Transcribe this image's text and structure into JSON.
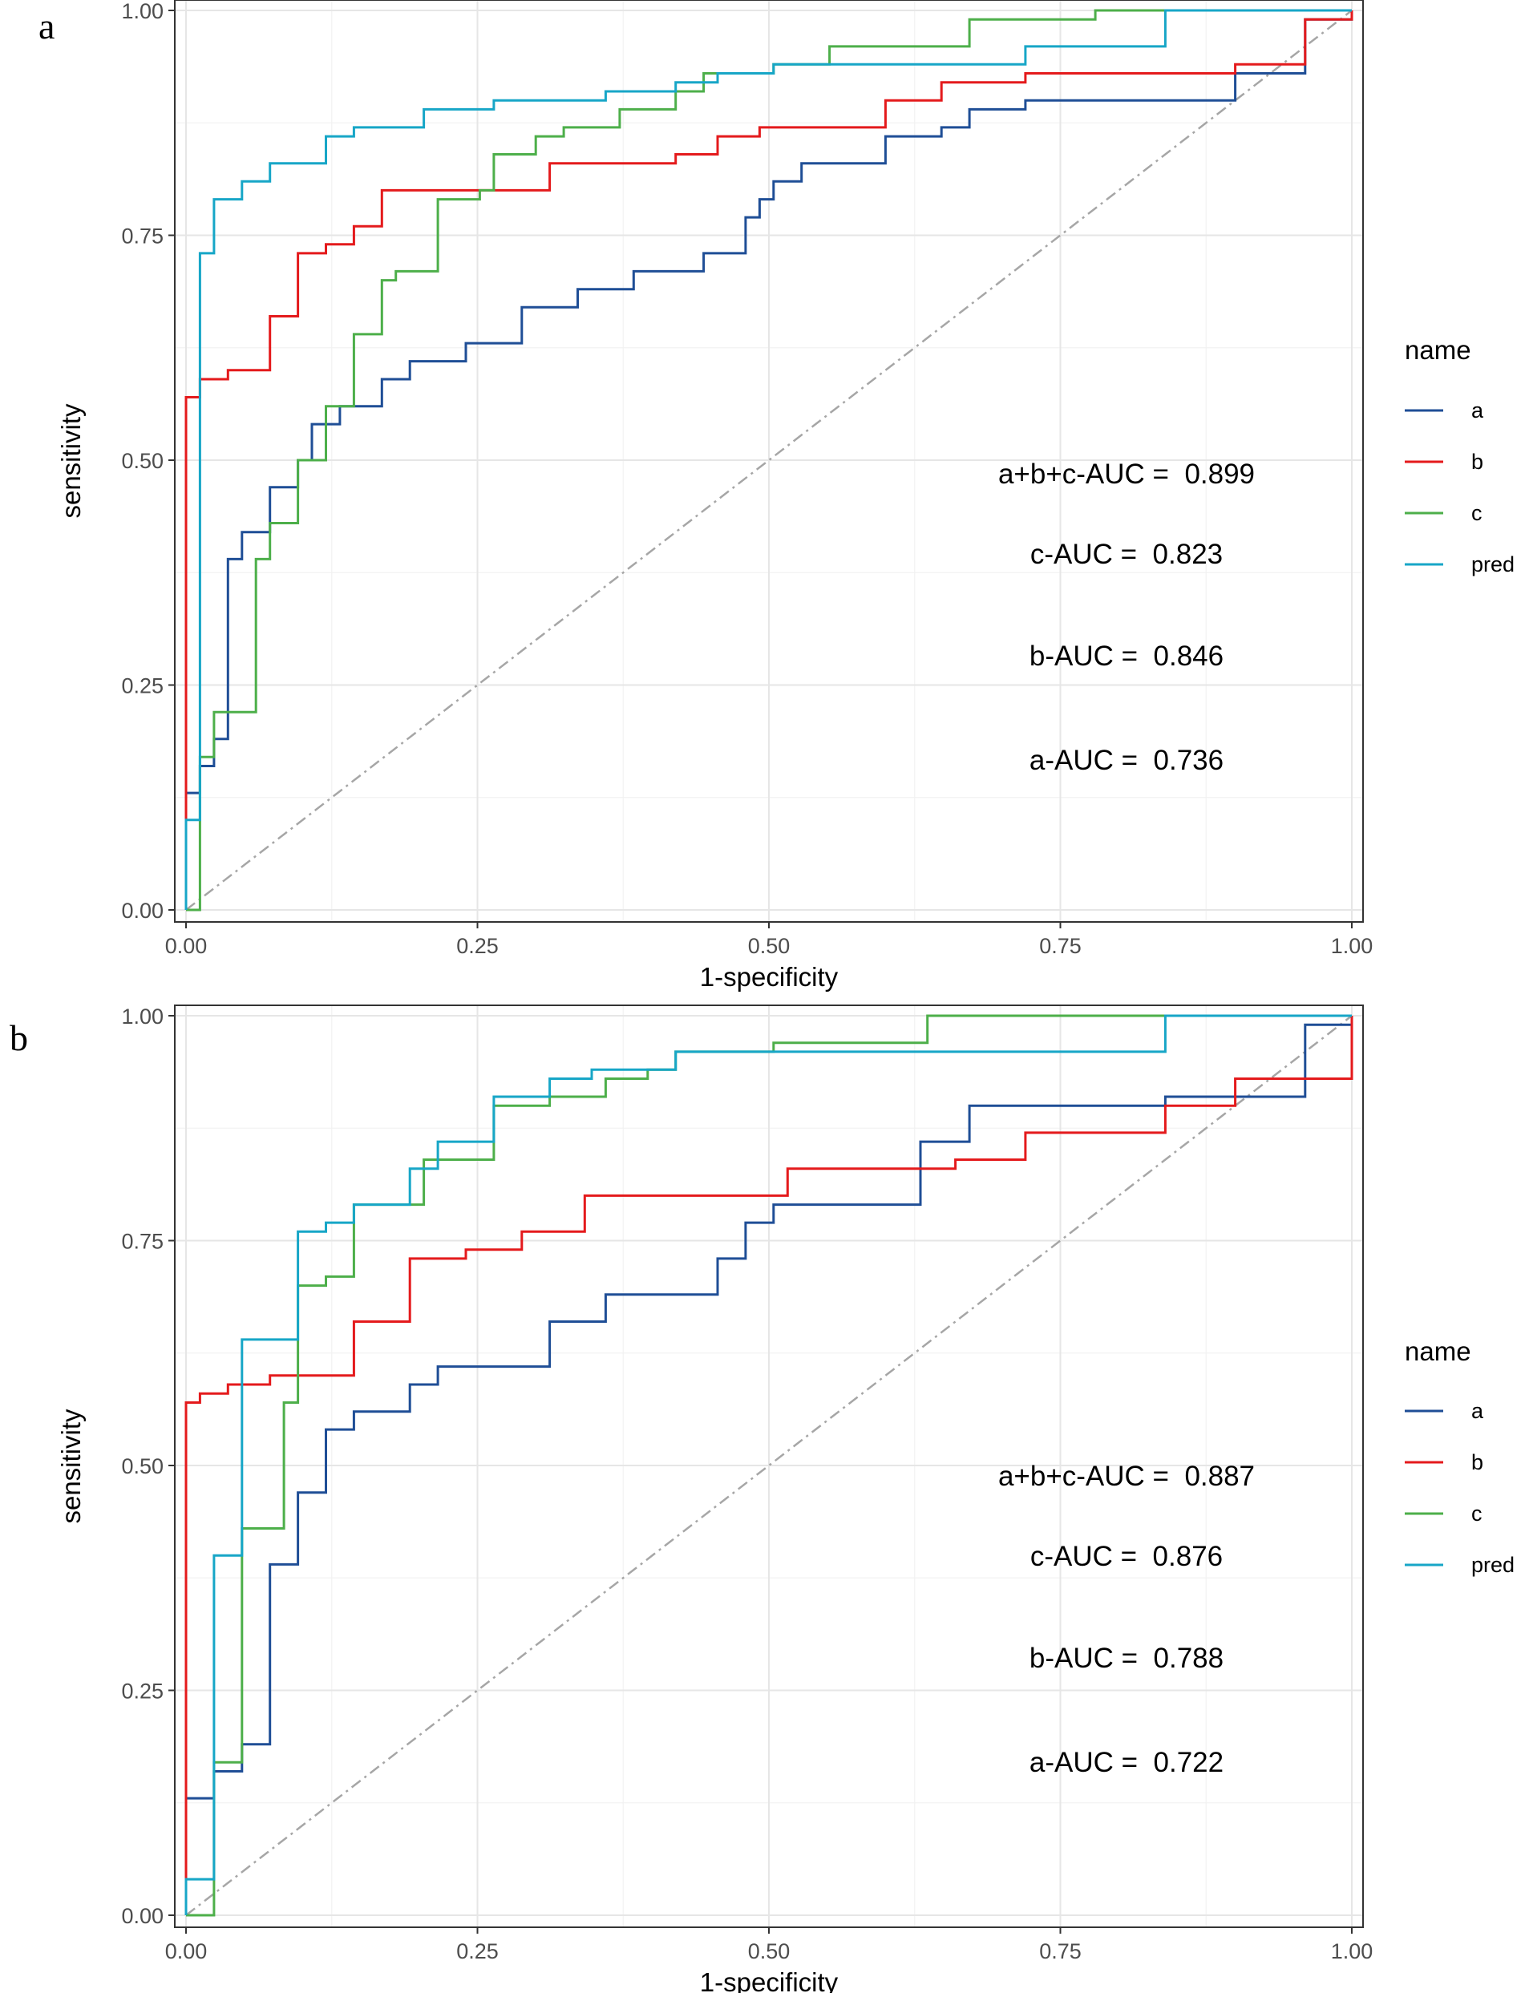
{
  "figure": {
    "panels": [
      {
        "letter": "a",
        "legend_title": "name"
      },
      {
        "letter": "b",
        "legend_title": "name"
      }
    ]
  },
  "chart_data": [
    {
      "type": "line",
      "panel": "a",
      "xlabel": "1-specificity",
      "ylabel": "sensitivity",
      "xlim": [
        0,
        1
      ],
      "ylim": [
        0,
        1
      ],
      "xticks": [
        "0.00",
        "0.25",
        "0.50",
        "0.75",
        "1.00"
      ],
      "yticks": [
        "0.00",
        "0.25",
        "0.50",
        "0.75",
        "1.00"
      ],
      "grid": true,
      "legend": {
        "title": "name",
        "position": "right",
        "entries": [
          "a",
          "b",
          "c",
          "pred"
        ]
      },
      "reference_line": {
        "x": [
          0,
          1
        ],
        "y": [
          0,
          1
        ],
        "style": "dash-dot",
        "color": "#a6a6a6"
      },
      "annotations": [
        "a+b+c-AUC =  0.899",
        "c-AUC =  0.823",
        "b-AUC =  0.846",
        "a-AUC =  0.736"
      ],
      "series": [
        {
          "name": "a",
          "color": "#1f4e96",
          "x": [
            0,
            0,
            0.012,
            0.012,
            0.024,
            0.024,
            0.036,
            0.036,
            0.048,
            0.048,
            0.072,
            0.072,
            0.096,
            0.096,
            0.108,
            0.108,
            0.132,
            0.132,
            0.168,
            0.168,
            0.192,
            0.192,
            0.24,
            0.24,
            0.288,
            0.288,
            0.336,
            0.336,
            0.384,
            0.384,
            0.444,
            0.444,
            0.48,
            0.48,
            0.492,
            0.492,
            0.504,
            0.504,
            0.528,
            0.528,
            0.6,
            0.6,
            0.648,
            0.648,
            0.672,
            0.672,
            0.72,
            0.72,
            0.9,
            0.9,
            0.96,
            0.96,
            1,
            1
          ],
          "y": [
            0,
            0.13,
            0.13,
            0.16,
            0.16,
            0.19,
            0.19,
            0.39,
            0.39,
            0.42,
            0.42,
            0.47,
            0.47,
            0.5,
            0.5,
            0.54,
            0.54,
            0.56,
            0.56,
            0.59,
            0.59,
            0.61,
            0.61,
            0.63,
            0.63,
            0.67,
            0.67,
            0.69,
            0.69,
            0.71,
            0.71,
            0.73,
            0.73,
            0.77,
            0.77,
            0.79,
            0.79,
            0.81,
            0.81,
            0.83,
            0.83,
            0.86,
            0.86,
            0.87,
            0.87,
            0.89,
            0.89,
            0.9,
            0.9,
            0.93,
            0.93,
            0.99,
            0.99,
            1
          ]
        },
        {
          "name": "b",
          "color": "#e41a1c",
          "x": [
            0,
            0,
            0.012,
            0.012,
            0.036,
            0.036,
            0.072,
            0.072,
            0.096,
            0.096,
            0.12,
            0.12,
            0.144,
            0.144,
            0.168,
            0.168,
            0.204,
            0.204,
            0.312,
            0.312,
            0.42,
            0.42,
            0.456,
            0.456,
            0.492,
            0.492,
            0.6,
            0.6,
            0.648,
            0.648,
            0.72,
            0.72,
            0.9,
            0.9,
            0.96,
            0.96,
            1,
            1
          ],
          "y": [
            0,
            0.57,
            0.57,
            0.59,
            0.59,
            0.6,
            0.6,
            0.66,
            0.66,
            0.73,
            0.73,
            0.74,
            0.74,
            0.76,
            0.76,
            0.8,
            0.8,
            0.8,
            0.8,
            0.83,
            0.83,
            0.84,
            0.84,
            0.86,
            0.86,
            0.87,
            0.87,
            0.9,
            0.9,
            0.92,
            0.92,
            0.93,
            0.93,
            0.94,
            0.94,
            0.99,
            0.99,
            1
          ]
        },
        {
          "name": "c",
          "color": "#4daf4a",
          "x": [
            0,
            0.012,
            0.012,
            0.024,
            0.024,
            0.06,
            0.06,
            0.072,
            0.072,
            0.096,
            0.096,
            0.12,
            0.12,
            0.144,
            0.144,
            0.168,
            0.168,
            0.18,
            0.18,
            0.216,
            0.216,
            0.252,
            0.252,
            0.264,
            0.264,
            0.3,
            0.3,
            0.324,
            0.324,
            0.372,
            0.372,
            0.42,
            0.42,
            0.444,
            0.444,
            0.504,
            0.504,
            0.552,
            0.552,
            0.672,
            0.672,
            0.78,
            0.78,
            1
          ],
          "y": [
            0,
            0,
            0.17,
            0.17,
            0.22,
            0.22,
            0.39,
            0.39,
            0.43,
            0.43,
            0.5,
            0.5,
            0.56,
            0.56,
            0.64,
            0.64,
            0.7,
            0.7,
            0.71,
            0.71,
            0.79,
            0.79,
            0.8,
            0.8,
            0.84,
            0.84,
            0.86,
            0.86,
            0.87,
            0.87,
            0.89,
            0.89,
            0.91,
            0.91,
            0.93,
            0.93,
            0.94,
            0.94,
            0.96,
            0.96,
            0.99,
            0.99,
            1,
            1
          ]
        },
        {
          "name": "pred",
          "color": "#17a6c7",
          "x": [
            0,
            0,
            0.012,
            0.012,
            0.024,
            0.024,
            0.048,
            0.048,
            0.072,
            0.072,
            0.12,
            0.12,
            0.144,
            0.144,
            0.204,
            0.204,
            0.264,
            0.264,
            0.36,
            0.36,
            0.42,
            0.42,
            0.456,
            0.456,
            0.504,
            0.504,
            0.72,
            0.72,
            0.84,
            0.84,
            1
          ],
          "y": [
            0,
            0.1,
            0.1,
            0.73,
            0.73,
            0.79,
            0.79,
            0.81,
            0.81,
            0.83,
            0.83,
            0.86,
            0.86,
            0.87,
            0.87,
            0.89,
            0.89,
            0.9,
            0.9,
            0.91,
            0.91,
            0.92,
            0.92,
            0.93,
            0.93,
            0.94,
            0.94,
            0.96,
            0.96,
            1,
            1
          ]
        }
      ]
    },
    {
      "type": "line",
      "panel": "b",
      "xlabel": "1-specificity",
      "ylabel": "sensitivity",
      "xlim": [
        0,
        1
      ],
      "ylim": [
        0,
        1
      ],
      "xticks": [
        "0.00",
        "0.25",
        "0.50",
        "0.75",
        "1.00"
      ],
      "yticks": [
        "0.00",
        "0.25",
        "0.50",
        "0.75",
        "1.00"
      ],
      "grid": true,
      "legend": {
        "title": "name",
        "position": "right",
        "entries": [
          "a",
          "b",
          "c",
          "pred"
        ]
      },
      "reference_line": {
        "x": [
          0,
          1
        ],
        "y": [
          0,
          1
        ],
        "style": "dash-dot",
        "color": "#a6a6a6"
      },
      "annotations": [
        "a+b+c-AUC =  0.887",
        "c-AUC =  0.876",
        "b-AUC =  0.788",
        "a-AUC =  0.722"
      ],
      "series": [
        {
          "name": "a",
          "color": "#1f4e96",
          "x": [
            0,
            0,
            0.024,
            0.024,
            0.048,
            0.048,
            0.072,
            0.072,
            0.096,
            0.096,
            0.12,
            0.12,
            0.144,
            0.144,
            0.192,
            0.192,
            0.216,
            0.216,
            0.312,
            0.312,
            0.36,
            0.36,
            0.456,
            0.456,
            0.48,
            0.48,
            0.504,
            0.504,
            0.63,
            0.63,
            0.672,
            0.672,
            0.84,
            0.84,
            0.96,
            0.96,
            1,
            1
          ],
          "y": [
            0,
            0.13,
            0.13,
            0.16,
            0.16,
            0.19,
            0.19,
            0.39,
            0.39,
            0.47,
            0.47,
            0.54,
            0.54,
            0.56,
            0.56,
            0.59,
            0.59,
            0.61,
            0.61,
            0.66,
            0.66,
            0.69,
            0.69,
            0.73,
            0.73,
            0.77,
            0.77,
            0.79,
            0.79,
            0.86,
            0.86,
            0.9,
            0.9,
            0.91,
            0.91,
            0.99,
            0.99,
            1
          ]
        },
        {
          "name": "b",
          "color": "#e41a1c",
          "x": [
            0,
            0,
            0.012,
            0.012,
            0.036,
            0.036,
            0.072,
            0.072,
            0.144,
            0.144,
            0.192,
            0.192,
            0.24,
            0.24,
            0.288,
            0.288,
            0.342,
            0.342,
            0.516,
            0.516,
            0.66,
            0.66,
            0.72,
            0.72,
            0.84,
            0.84,
            0.9,
            0.9,
            1,
            1
          ],
          "y": [
            0,
            0.57,
            0.57,
            0.58,
            0.58,
            0.59,
            0.59,
            0.6,
            0.6,
            0.66,
            0.66,
            0.73,
            0.73,
            0.74,
            0.74,
            0.76,
            0.76,
            0.8,
            0.8,
            0.83,
            0.83,
            0.84,
            0.84,
            0.87,
            0.87,
            0.9,
            0.9,
            0.93,
            0.93,
            1
          ]
        },
        {
          "name": "c",
          "color": "#4daf4a",
          "x": [
            0,
            0.024,
            0.024,
            0.048,
            0.048,
            0.084,
            0.084,
            0.096,
            0.096,
            0.12,
            0.12,
            0.144,
            0.144,
            0.204,
            0.204,
            0.264,
            0.264,
            0.312,
            0.312,
            0.36,
            0.36,
            0.396,
            0.396,
            0.42,
            0.42,
            0.504,
            0.504,
            0.636,
            0.636,
            0.84,
            0.84,
            1
          ],
          "y": [
            0,
            0,
            0.17,
            0.17,
            0.43,
            0.43,
            0.57,
            0.57,
            0.7,
            0.7,
            0.71,
            0.71,
            0.79,
            0.79,
            0.84,
            0.84,
            0.9,
            0.9,
            0.91,
            0.91,
            0.93,
            0.93,
            0.94,
            0.94,
            0.96,
            0.96,
            0.97,
            0.97,
            1,
            1,
            1,
            1
          ]
        },
        {
          "name": "pred",
          "color": "#17a6c7",
          "x": [
            0,
            0,
            0.024,
            0.024,
            0.048,
            0.048,
            0.096,
            0.096,
            0.12,
            0.12,
            0.144,
            0.144,
            0.192,
            0.192,
            0.216,
            0.216,
            0.264,
            0.264,
            0.312,
            0.312,
            0.348,
            0.348,
            0.42,
            0.42,
            0.48,
            0.48,
            0.84,
            0.84,
            1
          ],
          "y": [
            0,
            0.04,
            0.04,
            0.4,
            0.4,
            0.64,
            0.64,
            0.76,
            0.76,
            0.77,
            0.77,
            0.79,
            0.79,
            0.83,
            0.83,
            0.86,
            0.86,
            0.91,
            0.91,
            0.93,
            0.93,
            0.94,
            0.94,
            0.96,
            0.96,
            0.96,
            0.96,
            1,
            1
          ]
        }
      ]
    }
  ]
}
